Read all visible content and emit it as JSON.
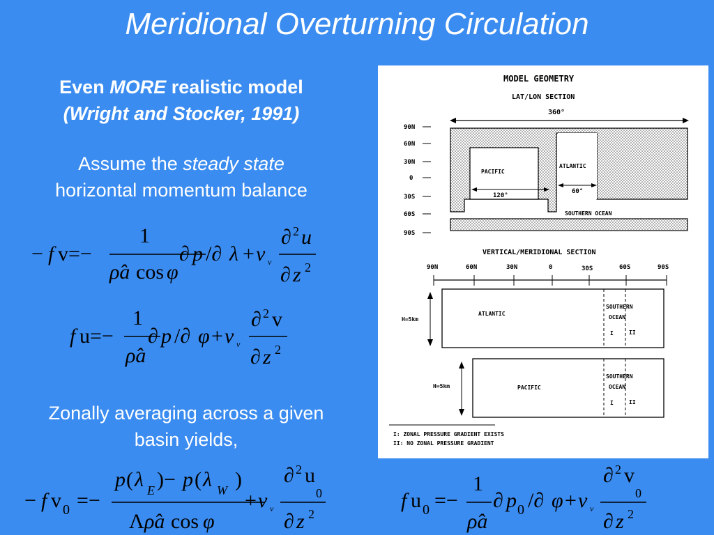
{
  "title": "Meridional Overturning Circulation",
  "heading": {
    "pre": "Even",
    "emph": "MORE",
    "post": "realistic model",
    "citation": "(Wright and Stocker, 1991)"
  },
  "assume": {
    "pre": "Assume the",
    "emph": "steady state",
    "line2": "horizontal momentum balance"
  },
  "zonal": {
    "line1": "Zonally averaging across a  given",
    "line2": "basin yields,"
  },
  "diagram": {
    "title": "MODEL GEOMETRY",
    "latlon_title": "LAT/LON SECTION",
    "width_label": "360°",
    "lat_labels": [
      "90N",
      "60N",
      "30N",
      "0",
      "30S",
      "60S",
      "90S"
    ],
    "pacific": "PACIFIC",
    "atlantic": "ATLANTIC",
    "pacific_width": "120°",
    "atlantic_width": "60°",
    "southern_ocean": "SOUTHERN OCEAN",
    "vert_title": "VERTICAL/MERIDIONAL SECTION",
    "axis_labels": [
      "90N",
      "60N",
      "30N",
      "0",
      "30S",
      "60S",
      "90S"
    ],
    "depth": "H=5km",
    "southern": "SOUTHERN",
    "ocean": "OCEAN",
    "zone1": "I",
    "zone2": "II",
    "legend1": "I:  ZONAL PRESSURE GRADIENT EXISTS",
    "legend2": "II: NO ZONAL PRESSURE GRADIENT"
  }
}
